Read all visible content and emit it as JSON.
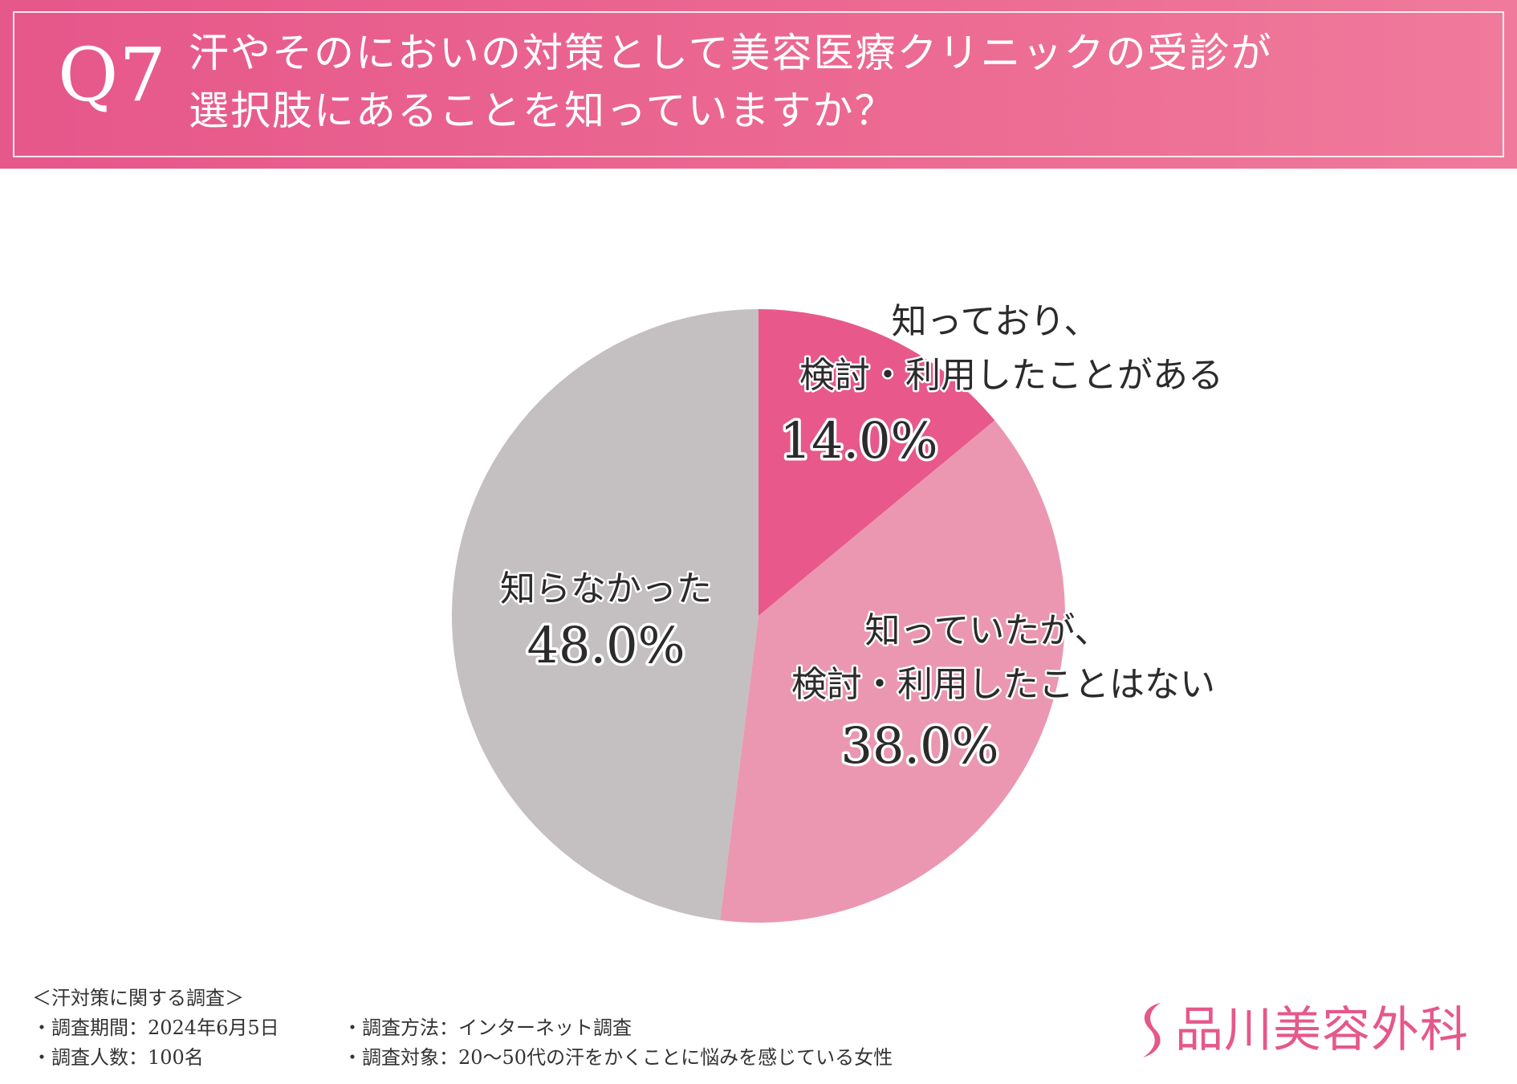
{
  "header": {
    "q_number": "Q7",
    "question_line1": "汗やそのにおいの対策として美容医療クリニックの受診が",
    "question_line2": "選択肢にあることを知っていますか？"
  },
  "chart_data": {
    "type": "pie",
    "start": "top",
    "direction": "clockwise",
    "slices": [
      {
        "label_lines": [
          "知っており、",
          "検討・利用したことがある"
        ],
        "value": 14.0,
        "value_label": "14.0%",
        "color": "#e8588a"
      },
      {
        "label_lines": [
          "知っていたが、",
          "検討・利用したことはない"
        ],
        "value": 38.0,
        "value_label": "38.0%",
        "color": "#eb97b1"
      },
      {
        "label_lines": [
          "知らなかった"
        ],
        "value": 48.0,
        "value_label": "48.0%",
        "color": "#c4bfc1"
      }
    ]
  },
  "footer": {
    "survey_title": "＜汗対策に関する調査＞",
    "period": "・調査期間：2024年6月5日",
    "method": "・調査方法：インターネット調査",
    "respondents": "・調査人数：100名",
    "target": "・調査対象：20～50代の汗をかくことに悩みを感じている女性"
  },
  "brand": {
    "name": "品川美容外科",
    "color": "#e6578a"
  }
}
